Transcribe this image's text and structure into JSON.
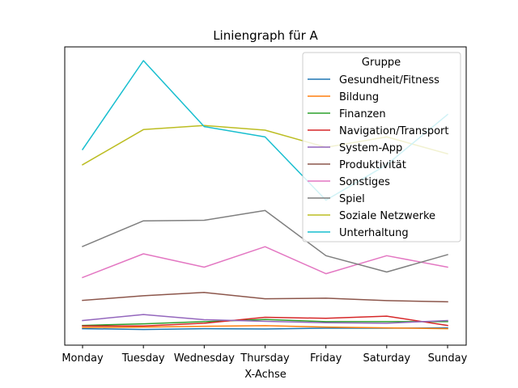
{
  "chart_data": {
    "type": "line",
    "title": "Liniengraph für A",
    "xlabel": "X-Achse",
    "ylabel": "",
    "categories": [
      "Monday",
      "Tuesday",
      "Wednesday",
      "Thursday",
      "Friday",
      "Saturday",
      "Sunday"
    ],
    "ylim": [
      0,
      100
    ],
    "grid": false,
    "y_ticks_shown": false,
    "legend": {
      "title": "Gruppe",
      "placement": "top-right"
    },
    "series": [
      {
        "name": "Gesundheit/Fitness",
        "color": "#1f77b4",
        "values": [
          1.0,
          0.7,
          1.0,
          0.9,
          1.2,
          1.2,
          1.3
        ]
      },
      {
        "name": "Bildung",
        "color": "#ff7f0e",
        "values": [
          1.4,
          1.6,
          1.9,
          2.1,
          1.6,
          1.3,
          1.0
        ]
      },
      {
        "name": "Finanzen",
        "color": "#2ca02c",
        "values": [
          2.2,
          2.8,
          3.6,
          4.4,
          3.6,
          3.6,
          3.6
        ]
      },
      {
        "name": "Navigation/Transport",
        "color": "#d62728",
        "values": [
          2.0,
          2.0,
          3.0,
          5.2,
          4.8,
          5.6,
          2.2
        ]
      },
      {
        "name": "System-App",
        "color": "#9467bd",
        "values": [
          4.0,
          6.2,
          4.3,
          3.7,
          3.2,
          3.0,
          4.0
        ]
      },
      {
        "name": "Produktivität",
        "color": "#8c564b",
        "values": [
          11.4,
          13.1,
          14.3,
          12.0,
          12.2,
          11.3,
          10.9
        ]
      },
      {
        "name": "Sonstiges",
        "color": "#e377c2",
        "values": [
          19.8,
          28.5,
          23.6,
          31.1,
          21.2,
          27.8,
          23.6
        ]
      },
      {
        "name": "Spiel",
        "color": "#7f7f7f",
        "values": [
          31.2,
          40.6,
          40.8,
          44.4,
          27.8,
          21.8,
          28.2
        ]
      },
      {
        "name": "Soziale Netzwerke",
        "color": "#bcbd22",
        "values": [
          61.2,
          74.1,
          75.6,
          73.9,
          67.6,
          71.4,
          65.2
        ]
      },
      {
        "name": "Unterhaltung",
        "color": "#17becf",
        "values": [
          66.8,
          99.4,
          75.2,
          71.4,
          48.2,
          61.2,
          79.6
        ]
      }
    ]
  }
}
